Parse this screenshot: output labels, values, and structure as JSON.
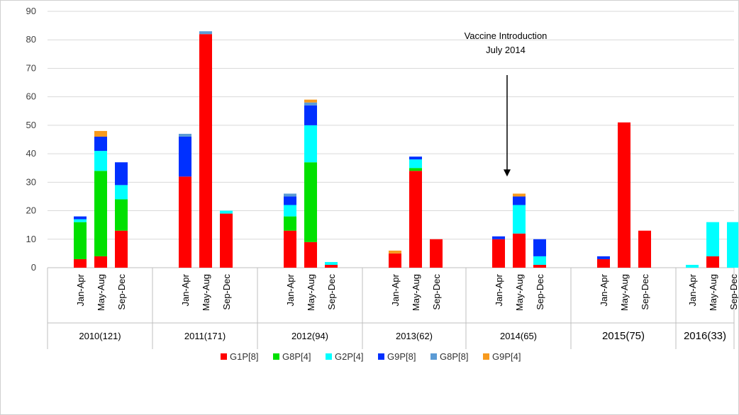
{
  "chart_data": {
    "type": "bar",
    "stacked": true,
    "ylim": [
      0,
      90
    ],
    "yticks": [
      0,
      10,
      20,
      30,
      40,
      50,
      60,
      70,
      80,
      90
    ],
    "grid": true,
    "legend_position": "bottom",
    "groups": [
      {
        "label": "2010(121)",
        "categories": [
          "Jan-Apr",
          "May-Aug",
          "Sep-Dec"
        ]
      },
      {
        "label": "2011(171)",
        "categories": [
          "Jan-Apr",
          "May-Aug",
          "Sep-Dec"
        ]
      },
      {
        "label": "2012(94)",
        "categories": [
          "Jan-Apr",
          "May-Aug",
          "Sep-Dec"
        ]
      },
      {
        "label": "2013(62)",
        "categories": [
          "Jan-Apr",
          "May-Aug",
          "Sep-Dec"
        ]
      },
      {
        "label": "2014(65)",
        "categories": [
          "Jan-Apr",
          "May-Aug",
          "Sep-Dec"
        ]
      },
      {
        "label": "2015(75)",
        "categories": [
          "Jan-Apr",
          "May-Aug",
          "Sep-Dec"
        ]
      },
      {
        "label": "2016(33)",
        "categories": [
          "Jan-Apr",
          "May-Aug",
          "Sep-Dec"
        ]
      }
    ],
    "series": [
      {
        "name": "G1P[8]",
        "color": "#ff0000",
        "values": [
          3,
          4,
          13,
          32,
          82,
          19,
          13,
          9,
          1,
          5,
          34,
          10,
          10,
          12,
          1,
          3,
          51,
          13,
          0,
          4,
          0
        ]
      },
      {
        "name": "G8P[4]",
        "color": "#00e000",
        "values": [
          13,
          30,
          11,
          0,
          0,
          0,
          5,
          28,
          0,
          0,
          1,
          0,
          0,
          0,
          0,
          0,
          0,
          0,
          0,
          0,
          0
        ]
      },
      {
        "name": "G2P[4]",
        "color": "#00ffff",
        "values": [
          1,
          7,
          5,
          0,
          0,
          1,
          4,
          13,
          1,
          0,
          3,
          0,
          0,
          10,
          3,
          0,
          0,
          0,
          1,
          12,
          16
        ]
      },
      {
        "name": "G9P[8]",
        "color": "#0030ff",
        "values": [
          1,
          5,
          8,
          14,
          0,
          0,
          3,
          7,
          0,
          0,
          1,
          0,
          1,
          3,
          6,
          1,
          0,
          0,
          0,
          0,
          0
        ]
      },
      {
        "name": "G8P[8]",
        "color": "#5b9bd5",
        "values": [
          0,
          0,
          0,
          1,
          1,
          0,
          1,
          1,
          0,
          0,
          0,
          0,
          0,
          0,
          0,
          0,
          0,
          0,
          0,
          0,
          0
        ]
      },
      {
        "name": "G9P[4]",
        "color": "#f79a1e",
        "values": [
          0,
          2,
          0,
          0,
          0,
          0,
          0,
          1,
          0,
          1,
          0,
          0,
          0,
          1,
          0,
          0,
          0,
          0,
          0,
          0,
          0
        ]
      }
    ],
    "annotations": [
      {
        "text_lines": [
          "Vaccine Introduction",
          "July 2014"
        ],
        "points_to_group": 4,
        "points_to_category": 1,
        "arrow_value": 32
      }
    ]
  }
}
